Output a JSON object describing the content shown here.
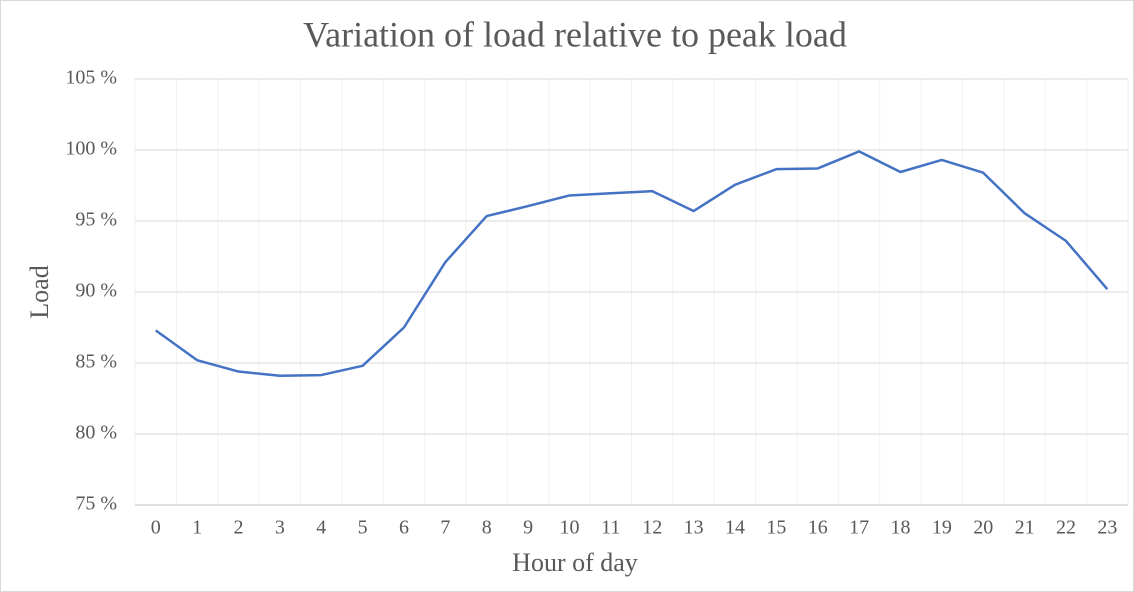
{
  "chart_data": {
    "type": "line",
    "title": "Variation of load relative to peak load",
    "x_label": "Hour of day",
    "y_label": "Load",
    "categories": [
      "0",
      "1",
      "2",
      "3",
      "4",
      "5",
      "6",
      "7",
      "8",
      "9",
      "10",
      "11",
      "12",
      "13",
      "14",
      "15",
      "16",
      "17",
      "18",
      "19",
      "20",
      "21",
      "22",
      "23"
    ],
    "series": [
      {
        "name": "Load",
        "color": "#4472c4",
        "values": [
          87.3,
          85.2,
          84.4,
          84.1,
          84.15,
          84.8,
          87.5,
          92.1,
          95.35,
          96.05,
          96.8,
          96.95,
          97.1,
          95.7,
          97.55,
          98.65,
          98.7,
          99.9,
          98.45,
          99.3,
          98.4,
          95.55,
          93.6,
          90.2
        ]
      }
    ],
    "ylim": [
      75,
      105
    ],
    "yticks": [
      {
        "value": 75,
        "label": "75 %"
      },
      {
        "value": 80,
        "label": "80 %"
      },
      {
        "value": 85,
        "label": "85 %"
      },
      {
        "value": 90,
        "label": "90 %"
      },
      {
        "value": 95,
        "label": "95 %"
      },
      {
        "value": 100,
        "label": "100 %"
      },
      {
        "value": 105,
        "label": "105 %"
      }
    ],
    "grid": true
  }
}
